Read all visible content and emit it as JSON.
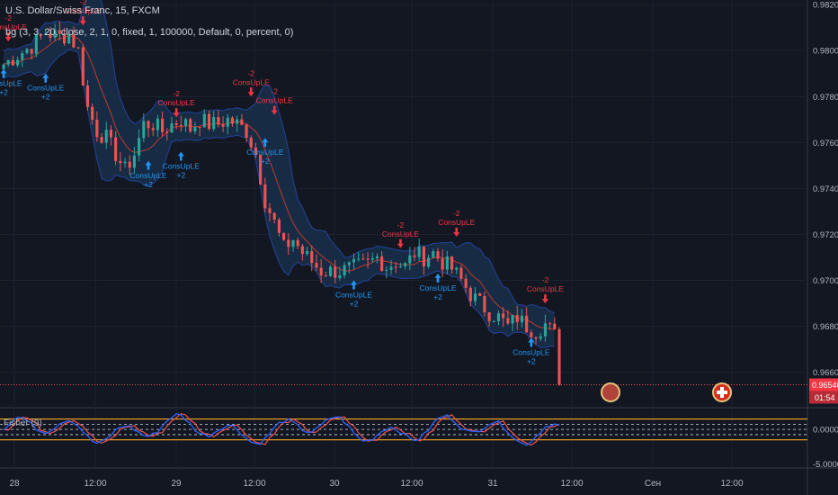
{
  "header": {
    "symbol_title": "U.S. Dollar/Swiss Franc, 15, FXCM",
    "indicator_line": "bg (3, 3, 20, close, 2, 1, 0, fixed, 1, 100000, Default, 0, percent, 0)"
  },
  "fisher_label": "Fisher (9)",
  "last_price": "0.96546",
  "countdown": "01:54",
  "colors": {
    "background": "#131722",
    "grid": "#1e2230",
    "up_candle": "#26a69a",
    "down_candle": "#ef5350",
    "band_fill": "#1a2f4a",
    "band_line": "#1f3f8c",
    "basis_line": "#c0392b",
    "signal_up": "#2196f3",
    "signal_down": "#f23645",
    "fisher_line": "#2962ff",
    "fisher_trigger": "#ef5350",
    "fisher_level": "#f5a623"
  },
  "chart_data": [
    {
      "type": "candlestick",
      "title": "U.S. Dollar/Swiss Franc, 15, FXCM",
      "x_ticks": [
        "28",
        "12:00",
        "29",
        "12:00",
        "30",
        "12:00",
        "31",
        "12:00",
        "Сен",
        "12:00"
      ],
      "y_ticks": [
        "0.98200",
        "0.98000",
        "0.97800",
        "0.97600",
        "0.97400",
        "0.97200",
        "0.97000",
        "0.96800",
        "0.96600"
      ],
      "ylim": [
        0.9645,
        0.9822
      ],
      "last_price": 0.96546,
      "close_path": [
        [
          0,
          0.9794
        ],
        [
          3,
          0.9798
        ],
        [
          6,
          0.9802
        ],
        [
          9,
          0.9808
        ],
        [
          12,
          0.9806
        ],
        [
          14,
          0.9807
        ],
        [
          16,
          0.98
        ],
        [
          18,
          0.9775
        ],
        [
          20,
          0.9765
        ],
        [
          22,
          0.9762
        ],
        [
          24,
          0.9755
        ],
        [
          26,
          0.9748
        ],
        [
          28,
          0.9755
        ],
        [
          30,
          0.9768
        ],
        [
          32,
          0.9768
        ],
        [
          34,
          0.9765
        ],
        [
          36,
          0.9768
        ],
        [
          38,
          0.977
        ],
        [
          40,
          0.9766
        ],
        [
          42,
          0.977
        ],
        [
          44,
          0.9768
        ],
        [
          46,
          0.9768
        ],
        [
          48,
          0.977
        ],
        [
          50,
          0.9768
        ],
        [
          52,
          0.9765
        ],
        [
          54,
          0.9755
        ],
        [
          56,
          0.9735
        ],
        [
          58,
          0.9725
        ],
        [
          60,
          0.9714
        ],
        [
          62,
          0.9718
        ],
        [
          64,
          0.9712
        ],
        [
          66,
          0.9708
        ],
        [
          68,
          0.9704
        ],
        [
          70,
          0.9704
        ],
        [
          72,
          0.9704
        ],
        [
          74,
          0.9705
        ],
        [
          76,
          0.9706
        ],
        [
          78,
          0.9707
        ],
        [
          80,
          0.971
        ],
        [
          82,
          0.9706
        ],
        [
          84,
          0.9708
        ],
        [
          86,
          0.9706
        ],
        [
          88,
          0.9712
        ],
        [
          90,
          0.971
        ],
        [
          92,
          0.9712
        ],
        [
          94,
          0.9708
        ],
        [
          96,
          0.9705
        ],
        [
          98,
          0.97
        ],
        [
          100,
          0.9694
        ],
        [
          102,
          0.969
        ],
        [
          104,
          0.9686
        ],
        [
          106,
          0.9684
        ],
        [
          108,
          0.968
        ],
        [
          110,
          0.9684
        ],
        [
          112,
          0.968
        ],
        [
          114,
          0.9678
        ],
        [
          116,
          0.9681
        ],
        [
          118,
          0.9676
        ],
        [
          119,
          0.96546
        ]
      ],
      "signals": [
        {
          "label": "ConsUpLE",
          "sub": "+2",
          "side": "long",
          "x": 0,
          "price": 0.9792
        },
        {
          "label": "ConsUpLE",
          "sub": "+2",
          "side": "long",
          "x": 9,
          "price": 0.979
        },
        {
          "label": "ConsUpLE",
          "sub": "+2",
          "side": "long",
          "x": 31,
          "price": 0.9752
        },
        {
          "label": "ConsUpLE",
          "sub": "+2",
          "side": "long",
          "x": 38,
          "price": 0.9756
        },
        {
          "label": "ConsUpLE",
          "sub": "+2",
          "side": "long",
          "x": 56,
          "price": 0.9762
        },
        {
          "label": "ConsUpLE",
          "sub": "+2",
          "side": "long",
          "x": 75,
          "price": 0.97
        },
        {
          "label": "ConsUpLE",
          "sub": "+2",
          "side": "long",
          "x": 93,
          "price": 0.9703
        },
        {
          "label": "ConsUpLE",
          "sub": "+2",
          "side": "long",
          "x": 113,
          "price": 0.9675
        },
        {
          "label": "ConsUpLE",
          "sub": "-2",
          "side": "short",
          "x": 1,
          "price": 0.9804
        },
        {
          "label": "ConsUpLE",
          "sub": "-2",
          "side": "short",
          "x": 17,
          "price": 0.9811
        },
        {
          "label": "ConsUpLE",
          "sub": "-2",
          "side": "short",
          "x": 37,
          "price": 0.9771
        },
        {
          "label": "ConsUpLE",
          "sub": "-2",
          "side": "short",
          "x": 53,
          "price": 0.978
        },
        {
          "label": "ConsUpLE",
          "sub": "-2",
          "side": "short",
          "x": 58,
          "price": 0.9772
        },
        {
          "label": "ConsUpLE",
          "sub": "-2",
          "side": "short",
          "x": 85,
          "price": 0.9714
        },
        {
          "label": "ConsUpLE",
          "sub": "-2",
          "side": "short",
          "x": 97,
          "price": 0.9719
        },
        {
          "label": "ConsUpLE",
          "sub": "-2",
          "side": "short",
          "x": 116,
          "price": 0.969
        }
      ]
    },
    {
      "type": "line",
      "title": "Fisher (9)",
      "y_ticks": [
        "0.0000",
        "-5.0000"
      ],
      "ylim": [
        -5.3,
        3.0
      ],
      "levels": [
        1.5,
        0.75,
        0,
        -0.75,
        -1.5
      ]
    }
  ]
}
